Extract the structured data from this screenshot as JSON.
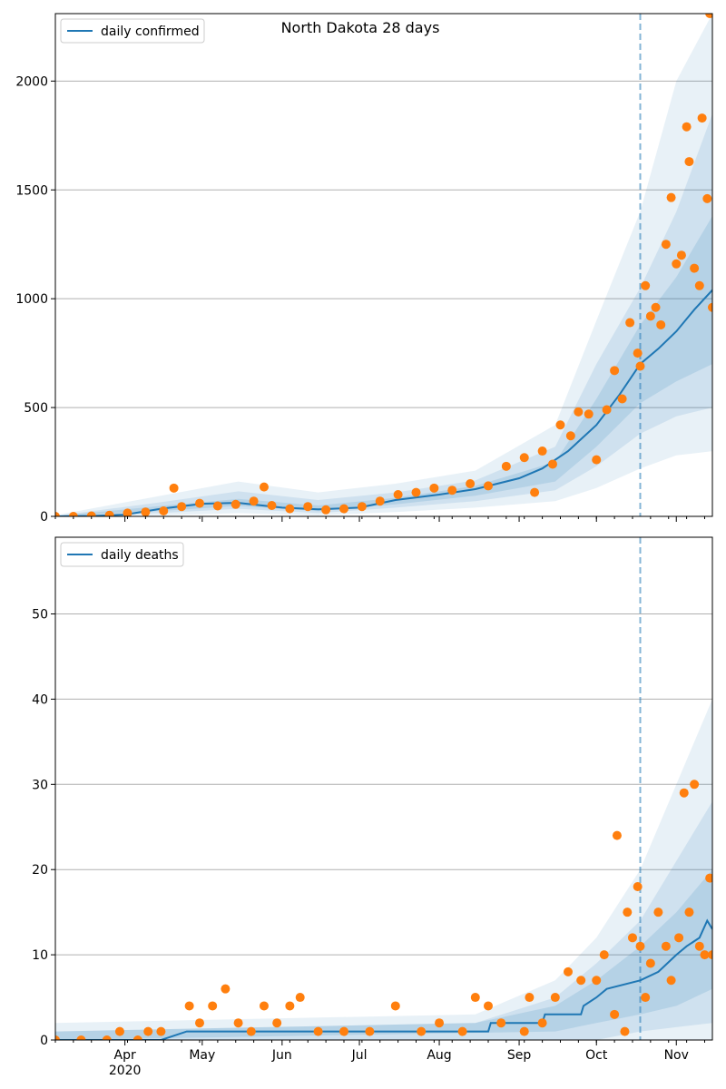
{
  "chart_data": [
    {
      "type": "line",
      "title": "North Dakota 28 days",
      "legend": {
        "label": "daily confirmed",
        "placement": "top-left"
      },
      "xlim": [
        "2020-03-05",
        "2020-11-15"
      ],
      "x_ticks": [
        {
          "date": "2020-04-01",
          "label": "Apr"
        },
        {
          "date": "2020-05-01",
          "label": "May"
        },
        {
          "date": "2020-06-01",
          "label": "Jun"
        },
        {
          "date": "2020-07-01",
          "label": "Jul"
        },
        {
          "date": "2020-08-01",
          "label": "Aug"
        },
        {
          "date": "2020-09-01",
          "label": "Sep"
        },
        {
          "date": "2020-10-01",
          "label": "Oct"
        },
        {
          "date": "2020-11-01",
          "label": "Nov"
        }
      ],
      "ylim": [
        0,
        2310
      ],
      "y_ticks": [
        0,
        500,
        1000,
        1500,
        2000
      ],
      "grid": "horizontal",
      "forecast_start": "2020-10-18",
      "line_color": "#1f77b4",
      "point_color": "#ff7f0e",
      "band_color": "#1f77b4",
      "fit": [
        [
          "2020-03-05",
          0
        ],
        [
          "2020-03-20",
          2
        ],
        [
          "2020-04-01",
          8
        ],
        [
          "2020-04-15",
          35
        ],
        [
          "2020-05-01",
          58
        ],
        [
          "2020-05-15",
          62
        ],
        [
          "2020-06-01",
          40
        ],
        [
          "2020-06-15",
          32
        ],
        [
          "2020-07-01",
          40
        ],
        [
          "2020-07-15",
          75
        ],
        [
          "2020-08-01",
          100
        ],
        [
          "2020-08-15",
          125
        ],
        [
          "2020-09-01",
          175
        ],
        [
          "2020-09-10",
          220
        ],
        [
          "2020-09-20",
          300
        ],
        [
          "2020-10-01",
          420
        ],
        [
          "2020-10-10",
          560
        ],
        [
          "2020-10-18",
          700
        ],
        [
          "2020-10-25",
          770
        ],
        [
          "2020-11-01",
          850
        ],
        [
          "2020-11-08",
          950
        ],
        [
          "2020-11-15",
          1040
        ]
      ],
      "bands": [
        {
          "level": "outer",
          "lower": [
            [
              "2020-03-05",
              0
            ],
            [
              "2020-04-15",
              5
            ],
            [
              "2020-05-15",
              15
            ],
            [
              "2020-06-15",
              5
            ],
            [
              "2020-07-15",
              20
            ],
            [
              "2020-08-15",
              40
            ],
            [
              "2020-09-15",
              70
            ],
            [
              "2020-10-01",
              130
            ],
            [
              "2020-10-18",
              220
            ],
            [
              "2020-11-01",
              280
            ],
            [
              "2020-11-15",
              300
            ]
          ],
          "upper": [
            [
              "2020-03-05",
              5
            ],
            [
              "2020-04-15",
              95
            ],
            [
              "2020-05-15",
              160
            ],
            [
              "2020-06-15",
              110
            ],
            [
              "2020-07-15",
              150
            ],
            [
              "2020-08-15",
              210
            ],
            [
              "2020-09-15",
              420
            ],
            [
              "2020-10-01",
              900
            ],
            [
              "2020-10-18",
              1400
            ],
            [
              "2020-11-01",
              2000
            ],
            [
              "2020-11-15",
              2310
            ]
          ]
        },
        {
          "level": "middle",
          "lower": [
            [
              "2020-03-05",
              0
            ],
            [
              "2020-04-15",
              15
            ],
            [
              "2020-05-15",
              35
            ],
            [
              "2020-06-15",
              15
            ],
            [
              "2020-07-15",
              40
            ],
            [
              "2020-08-15",
              70
            ],
            [
              "2020-09-15",
              120
            ],
            [
              "2020-10-01",
              230
            ],
            [
              "2020-10-18",
              380
            ],
            [
              "2020-11-01",
              460
            ],
            [
              "2020-11-15",
              500
            ]
          ],
          "upper": [
            [
              "2020-03-05",
              2
            ],
            [
              "2020-04-15",
              65
            ],
            [
              "2020-05-15",
              115
            ],
            [
              "2020-06-15",
              75
            ],
            [
              "2020-07-15",
              110
            ],
            [
              "2020-08-15",
              165
            ],
            [
              "2020-09-15",
              320
            ],
            [
              "2020-10-01",
              700
            ],
            [
              "2020-10-18",
              1050
            ],
            [
              "2020-11-01",
              1400
            ],
            [
              "2020-11-15",
              1850
            ]
          ]
        },
        {
          "level": "inner",
          "lower": [
            [
              "2020-03-05",
              0
            ],
            [
              "2020-04-15",
              25
            ],
            [
              "2020-05-15",
              48
            ],
            [
              "2020-06-15",
              24
            ],
            [
              "2020-07-15",
              55
            ],
            [
              "2020-08-15",
              95
            ],
            [
              "2020-09-15",
              160
            ],
            [
              "2020-10-01",
              320
            ],
            [
              "2020-10-18",
              520
            ],
            [
              "2020-11-01",
              620
            ],
            [
              "2020-11-15",
              700
            ]
          ],
          "upper": [
            [
              "2020-03-05",
              1
            ],
            [
              "2020-04-15",
              48
            ],
            [
              "2020-05-15",
              80
            ],
            [
              "2020-06-15",
              50
            ],
            [
              "2020-07-15",
              85
            ],
            [
              "2020-08-15",
              140
            ],
            [
              "2020-09-15",
              250
            ],
            [
              "2020-10-01",
              540
            ],
            [
              "2020-10-18",
              880
            ],
            [
              "2020-11-01",
              1100
            ],
            [
              "2020-11-15",
              1380
            ]
          ]
        }
      ],
      "observed": [
        [
          "2020-03-05",
          0
        ],
        [
          "2020-03-12",
          0
        ],
        [
          "2020-03-19",
          2
        ],
        [
          "2020-03-26",
          5
        ],
        [
          "2020-04-02",
          15
        ],
        [
          "2020-04-09",
          20
        ],
        [
          "2020-04-16",
          25
        ],
        [
          "2020-04-20",
          130
        ],
        [
          "2020-04-23",
          45
        ],
        [
          "2020-04-30",
          60
        ],
        [
          "2020-05-07",
          48
        ],
        [
          "2020-05-14",
          55
        ],
        [
          "2020-05-21",
          70
        ],
        [
          "2020-05-25",
          135
        ],
        [
          "2020-05-28",
          50
        ],
        [
          "2020-06-04",
          35
        ],
        [
          "2020-06-11",
          45
        ],
        [
          "2020-06-18",
          30
        ],
        [
          "2020-06-25",
          35
        ],
        [
          "2020-07-02",
          45
        ],
        [
          "2020-07-09",
          70
        ],
        [
          "2020-07-16",
          100
        ],
        [
          "2020-07-23",
          110
        ],
        [
          "2020-07-30",
          130
        ],
        [
          "2020-08-06",
          120
        ],
        [
          "2020-08-13",
          150
        ],
        [
          "2020-08-20",
          140
        ],
        [
          "2020-08-27",
          230
        ],
        [
          "2020-09-03",
          270
        ],
        [
          "2020-09-07",
          110
        ],
        [
          "2020-09-10",
          300
        ],
        [
          "2020-09-14",
          240
        ],
        [
          "2020-09-17",
          420
        ],
        [
          "2020-09-21",
          370
        ],
        [
          "2020-09-24",
          480
        ],
        [
          "2020-09-28",
          470
        ],
        [
          "2020-10-01",
          260
        ],
        [
          "2020-10-05",
          490
        ],
        [
          "2020-10-08",
          670
        ],
        [
          "2020-10-11",
          540
        ],
        [
          "2020-10-14",
          890
        ],
        [
          "2020-10-17",
          750
        ],
        [
          "2020-10-18",
          690
        ],
        [
          "2020-10-20",
          1060
        ],
        [
          "2020-10-22",
          920
        ],
        [
          "2020-10-24",
          960
        ],
        [
          "2020-10-26",
          880
        ],
        [
          "2020-10-28",
          1250
        ],
        [
          "2020-10-30",
          1465
        ],
        [
          "2020-11-01",
          1160
        ],
        [
          "2020-11-03",
          1200
        ],
        [
          "2020-11-05",
          1790
        ],
        [
          "2020-11-06",
          1630
        ],
        [
          "2020-11-08",
          1140
        ],
        [
          "2020-11-10",
          1060
        ],
        [
          "2020-11-11",
          1830
        ],
        [
          "2020-11-13",
          1460
        ],
        [
          "2020-11-14",
          2310
        ],
        [
          "2020-11-15",
          960
        ]
      ]
    },
    {
      "type": "line",
      "legend": {
        "label": "daily deaths",
        "placement": "top-left"
      },
      "xlim": [
        "2020-03-05",
        "2020-11-15"
      ],
      "x_ticks": [
        {
          "date": "2020-04-01",
          "label": "Apr"
        },
        {
          "date": "2020-05-01",
          "label": "May"
        },
        {
          "date": "2020-06-01",
          "label": "Jun"
        },
        {
          "date": "2020-07-01",
          "label": "Jul"
        },
        {
          "date": "2020-08-01",
          "label": "Aug"
        },
        {
          "date": "2020-09-01",
          "label": "Sep"
        },
        {
          "date": "2020-10-01",
          "label": "Oct"
        },
        {
          "date": "2020-11-01",
          "label": "Nov"
        }
      ],
      "x_year_label": "2020",
      "ylim": [
        0,
        59
      ],
      "y_ticks": [
        0,
        10,
        20,
        30,
        40,
        50
      ],
      "grid": "horizontal",
      "forecast_start": "2020-10-18",
      "line_color": "#1f77b4",
      "point_color": "#ff7f0e",
      "band_color": "#1f77b4",
      "fit": [
        [
          "2020-03-05",
          0
        ],
        [
          "2020-04-15",
          0
        ],
        [
          "2020-04-25",
          1
        ],
        [
          "2020-06-30",
          1
        ],
        [
          "2020-07-01",
          1
        ],
        [
          "2020-08-20",
          1
        ],
        [
          "2020-08-21",
          2
        ],
        [
          "2020-09-10",
          2
        ],
        [
          "2020-09-11",
          3
        ],
        [
          "2020-09-25",
          3
        ],
        [
          "2020-09-26",
          4
        ],
        [
          "2020-10-01",
          5
        ],
        [
          "2020-10-05",
          6
        ],
        [
          "2020-10-18",
          7
        ],
        [
          "2020-10-25",
          8
        ],
        [
          "2020-11-01",
          10
        ],
        [
          "2020-11-05",
          11
        ],
        [
          "2020-11-10",
          12
        ],
        [
          "2020-11-13",
          14
        ],
        [
          "2020-11-15",
          13
        ]
      ],
      "bands": [
        {
          "level": "outer",
          "lower": [
            [
              "2020-03-05",
              0
            ],
            [
              "2020-11-15",
              0
            ]
          ],
          "upper": [
            [
              "2020-03-05",
              2
            ],
            [
              "2020-08-15",
              3
            ],
            [
              "2020-09-15",
              7
            ],
            [
              "2020-10-01",
              12
            ],
            [
              "2020-10-18",
              20
            ],
            [
              "2020-11-01",
              30
            ],
            [
              "2020-11-15",
              40
            ]
          ]
        },
        {
          "level": "middle",
          "lower": [
            [
              "2020-03-05",
              0
            ],
            [
              "2020-10-01",
              0
            ],
            [
              "2020-10-18",
              1
            ],
            [
              "2020-11-15",
              2
            ]
          ],
          "upper": [
            [
              "2020-03-05",
              1
            ],
            [
              "2020-08-15",
              2
            ],
            [
              "2020-09-15",
              5
            ],
            [
              "2020-10-01",
              9
            ],
            [
              "2020-10-18",
              14
            ],
            [
              "2020-11-01",
              21
            ],
            [
              "2020-11-15",
              28
            ]
          ]
        },
        {
          "level": "inner",
          "lower": [
            [
              "2020-03-05",
              0
            ],
            [
              "2020-09-15",
              1
            ],
            [
              "2020-10-01",
              2
            ],
            [
              "2020-10-18",
              3
            ],
            [
              "2020-11-01",
              4
            ],
            [
              "2020-11-15",
              6
            ]
          ],
          "upper": [
            [
              "2020-03-05",
              1
            ],
            [
              "2020-08-15",
              2
            ],
            [
              "2020-09-15",
              4
            ],
            [
              "2020-10-01",
              7
            ],
            [
              "2020-10-18",
              11
            ],
            [
              "2020-11-01",
              15
            ],
            [
              "2020-11-15",
              20
            ]
          ]
        }
      ],
      "observed": [
        [
          "2020-03-05",
          0
        ],
        [
          "2020-03-15",
          0
        ],
        [
          "2020-03-25",
          0
        ],
        [
          "2020-03-30",
          1
        ],
        [
          "2020-04-06",
          0
        ],
        [
          "2020-04-10",
          1
        ],
        [
          "2020-04-15",
          1
        ],
        [
          "2020-04-26",
          4
        ],
        [
          "2020-04-30",
          2
        ],
        [
          "2020-05-05",
          4
        ],
        [
          "2020-05-10",
          6
        ],
        [
          "2020-05-15",
          2
        ],
        [
          "2020-05-20",
          1
        ],
        [
          "2020-05-25",
          4
        ],
        [
          "2020-05-30",
          2
        ],
        [
          "2020-06-04",
          4
        ],
        [
          "2020-06-08",
          5
        ],
        [
          "2020-06-15",
          1
        ],
        [
          "2020-06-25",
          1
        ],
        [
          "2020-07-05",
          1
        ],
        [
          "2020-07-15",
          4
        ],
        [
          "2020-07-25",
          1
        ],
        [
          "2020-08-01",
          2
        ],
        [
          "2020-08-10",
          1
        ],
        [
          "2020-08-15",
          5
        ],
        [
          "2020-08-20",
          4
        ],
        [
          "2020-08-25",
          2
        ],
        [
          "2020-09-03",
          1
        ],
        [
          "2020-09-05",
          5
        ],
        [
          "2020-09-10",
          2
        ],
        [
          "2020-09-15",
          5
        ],
        [
          "2020-09-20",
          8
        ],
        [
          "2020-09-25",
          7
        ],
        [
          "2020-10-01",
          7
        ],
        [
          "2020-10-04",
          10
        ],
        [
          "2020-10-08",
          3
        ],
        [
          "2020-10-09",
          24
        ],
        [
          "2020-10-12",
          1
        ],
        [
          "2020-10-13",
          15
        ],
        [
          "2020-10-15",
          12
        ],
        [
          "2020-10-17",
          18
        ],
        [
          "2020-10-18",
          11
        ],
        [
          "2020-10-20",
          5
        ],
        [
          "2020-10-22",
          9
        ],
        [
          "2020-10-25",
          15
        ],
        [
          "2020-10-28",
          11
        ],
        [
          "2020-10-30",
          7
        ],
        [
          "2020-11-02",
          12
        ],
        [
          "2020-11-04",
          29
        ],
        [
          "2020-11-06",
          15
        ],
        [
          "2020-11-08",
          30
        ],
        [
          "2020-11-10",
          11
        ],
        [
          "2020-11-12",
          10
        ],
        [
          "2020-11-14",
          19
        ],
        [
          "2020-11-15",
          10
        ]
      ]
    }
  ]
}
